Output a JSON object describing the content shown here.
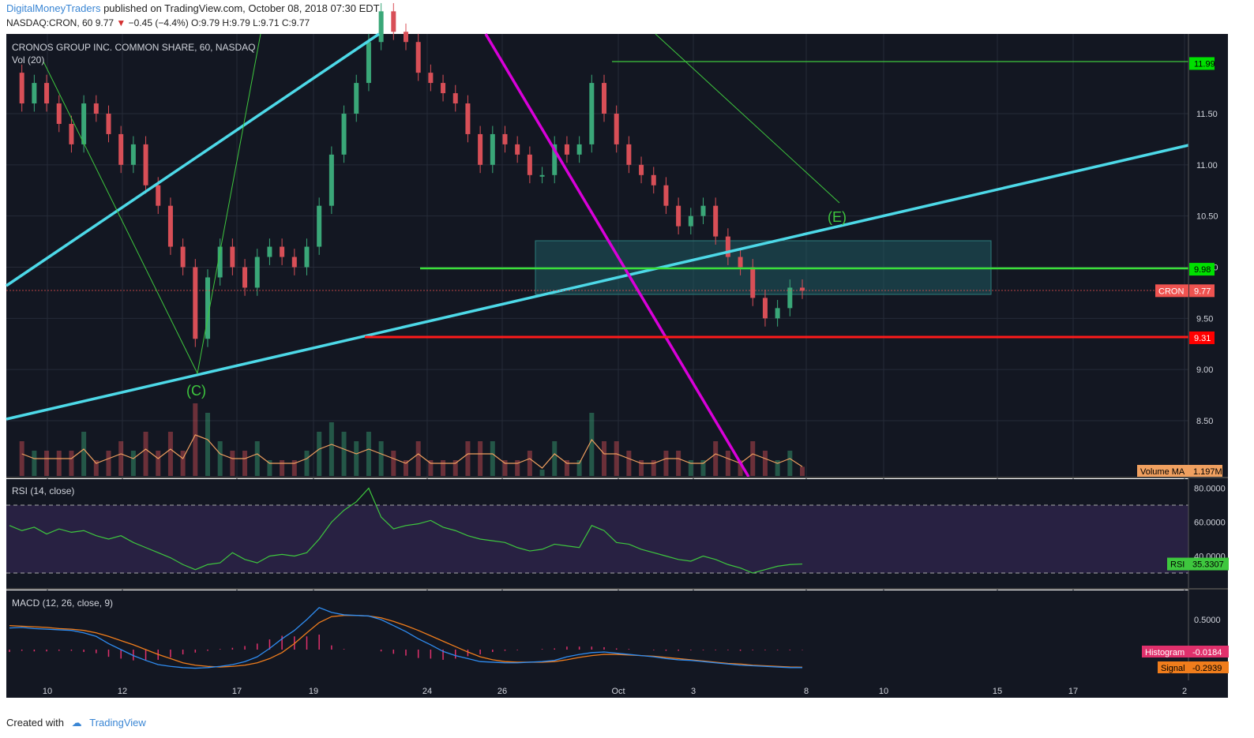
{
  "header": {
    "publisher": "DigitalMoneyTraders",
    "published_text": "published on TradingView.com, October 08, 2018 07:30 EDT"
  },
  "ohlc_line": {
    "symbol": "NASDAQ:CRON, 60",
    "last": "9.77",
    "change": "−0.45 (−4.4%)",
    "open": "O:9.79",
    "high": "H:9.79",
    "low": "L:9.71",
    "close": "C:9.77"
  },
  "chart_data": [
    {
      "type": "candlestick",
      "title": "CRONOS GROUP INC. COMMON SHARE, 60, NASDAQ",
      "indicator_label": "Vol (20)",
      "y_ticks": [
        "11.50",
        "11.00",
        "10.50",
        "10.00",
        "9.50",
        "9.00",
        "8.50"
      ],
      "x_ticks": [
        "10",
        "12",
        "17",
        "19",
        "24",
        "26",
        "Oct",
        "3",
        "8",
        "10",
        "15",
        "17",
        "2"
      ],
      "price_labels": [
        {
          "label": "11.99",
          "color": "#00e000"
        },
        {
          "label": "9.98",
          "color": "#00e000"
        },
        {
          "label": "9.77",
          "prefix": "CRON",
          "color": "#ef5350"
        },
        {
          "label": "9.31",
          "color": "#ff0000"
        }
      ],
      "volume_ma_label": "Volume MA",
      "volume_ma_value": "1.197M",
      "wave_labels": [
        "(C)",
        "(E)"
      ],
      "levels": {
        "resistance": 11.99,
        "pivot": 9.98,
        "last": 9.77,
        "support": 9.31
      },
      "series": [
        {
          "name": "price",
          "values": [
            11.9,
            11.6,
            11.8,
            11.6,
            11.4,
            11.2,
            11.6,
            11.5,
            11.3,
            11.0,
            11.2,
            10.8,
            10.6,
            10.2,
            10.0,
            9.3,
            9.9,
            10.2,
            10.0,
            9.8,
            10.1,
            10.2,
            10.1,
            10.0,
            10.2,
            10.6,
            11.1,
            11.5,
            11.8,
            12.2,
            12.5,
            12.3,
            12.2,
            11.9,
            11.8,
            11.7,
            11.6,
            11.3,
            11.0,
            11.3,
            11.2,
            11.1,
            10.9,
            10.9,
            11.2,
            11.1,
            11.2,
            11.8,
            11.5,
            11.2,
            11.0,
            10.9,
            10.8,
            10.6,
            10.4,
            10.5,
            10.6,
            10.3,
            10.1,
            10.0,
            9.7,
            9.5,
            9.6,
            9.8,
            9.77
          ]
        }
      ]
    },
    {
      "type": "line",
      "title": "RSI (14, close)",
      "y_ticks": [
        "80.0000",
        "60.0000",
        "40.0000"
      ],
      "ylim": [
        15,
        88
      ],
      "last_label": "RSI",
      "last_value": "35.3307",
      "series": [
        {
          "name": "RSI",
          "values": [
            58,
            55,
            57,
            53,
            56,
            54,
            55,
            52,
            50,
            52,
            48,
            45,
            42,
            39,
            35,
            32,
            35,
            36,
            42,
            38,
            36,
            40,
            41,
            40,
            42,
            50,
            60,
            67,
            72,
            80,
            63,
            56,
            58,
            59,
            61,
            57,
            55,
            52,
            50,
            49,
            48,
            45,
            43,
            44,
            47,
            46,
            45,
            58,
            55,
            48,
            47,
            44,
            42,
            40,
            38,
            37,
            40,
            38,
            35,
            33,
            30,
            32,
            34,
            35,
            35.33
          ]
        }
      ]
    },
    {
      "type": "line",
      "title": "MACD (12, 26, close, 9)",
      "y_ticks": [
        "0.5000"
      ],
      "histogram_label": "Histogram",
      "histogram_value": "-0.0184",
      "signal_label": "Signal",
      "signal_value": "-0.2939",
      "series": [
        {
          "name": "MACD",
          "values": [
            0.36,
            0.37,
            0.35,
            0.34,
            0.33,
            0.32,
            0.28,
            0.22,
            0.1,
            0.0,
            -0.1,
            -0.18,
            -0.25,
            -0.28,
            -0.3,
            -0.31,
            -0.3,
            -0.28,
            -0.25,
            -0.2,
            -0.12,
            0.02,
            0.18,
            0.32,
            0.5,
            0.7,
            0.62,
            0.58,
            0.57,
            0.56,
            0.5,
            0.4,
            0.3,
            0.18,
            0.08,
            -0.03,
            -0.1,
            -0.15,
            -0.2,
            -0.21,
            -0.22,
            -0.22,
            -0.21,
            -0.2,
            -0.18,
            -0.12,
            -0.08,
            -0.05,
            -0.04,
            -0.06,
            -0.08,
            -0.1,
            -0.12,
            -0.15,
            -0.17,
            -0.18,
            -0.2,
            -0.22,
            -0.24,
            -0.26,
            -0.27,
            -0.28,
            -0.29,
            -0.3,
            -0.3
          ]
        },
        {
          "name": "Signal",
          "values": [
            0.4,
            0.39,
            0.38,
            0.37,
            0.35,
            0.34,
            0.32,
            0.28,
            0.22,
            0.15,
            0.08,
            0.0,
            -0.08,
            -0.15,
            -0.22,
            -0.26,
            -0.28,
            -0.29,
            -0.28,
            -0.26,
            -0.22,
            -0.15,
            -0.05,
            0.1,
            0.28,
            0.45,
            0.55,
            0.57,
            0.57,
            0.56,
            0.53,
            0.47,
            0.4,
            0.32,
            0.23,
            0.14,
            0.05,
            -0.04,
            -0.12,
            -0.17,
            -0.2,
            -0.21,
            -0.21,
            -0.21,
            -0.2,
            -0.17,
            -0.13,
            -0.1,
            -0.08,
            -0.08,
            -0.09,
            -0.1,
            -0.11,
            -0.13,
            -0.15,
            -0.17,
            -0.19,
            -0.21,
            -0.23,
            -0.24,
            -0.26,
            -0.27,
            -0.28,
            -0.29,
            -0.2939
          ]
        }
      ]
    }
  ],
  "footer": {
    "created_with": "Created with",
    "brand": "TradingView"
  },
  "colors": {
    "background": "#131722",
    "up_candle": "#3aa778",
    "down_candle": "#d84f57",
    "trendline": "#4dd9e8",
    "downtrend": "#d900d9",
    "wave": "#3ec73e",
    "rsi_line": "#3ec73e",
    "macd_line": "#2f8cf0",
    "signal_line": "#f07d1c"
  }
}
